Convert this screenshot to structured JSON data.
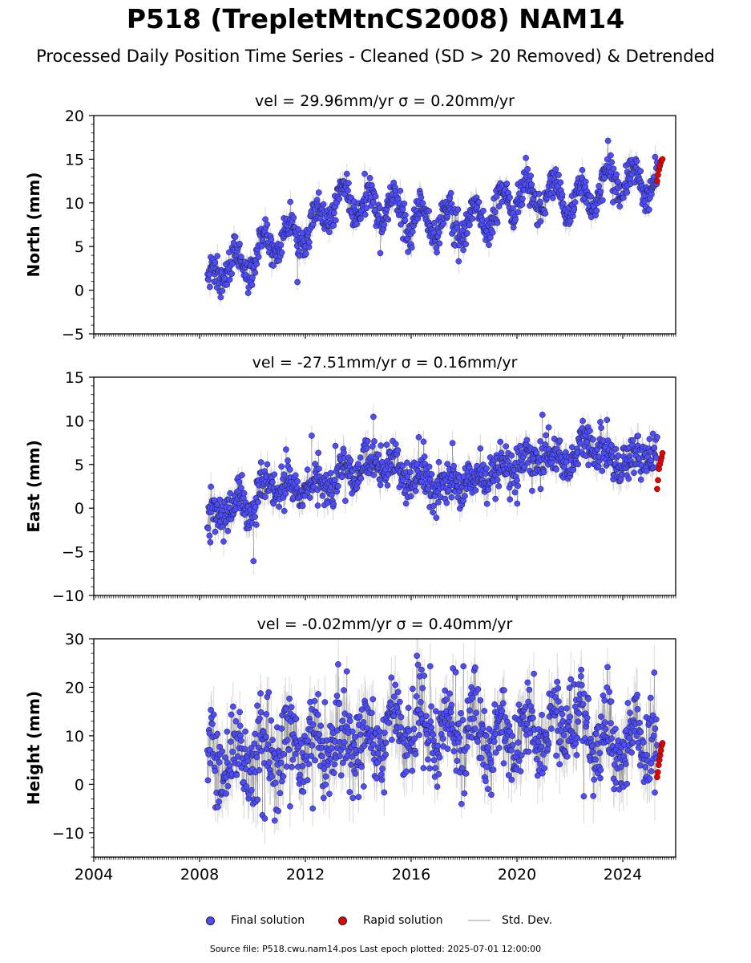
{
  "figure": {
    "title": "P518 (TrepletMtnCS2008) NAM14",
    "subtitle": "Processed Daily Position Time Series - Cleaned (SD > 20 Removed) & Detrended",
    "footer": "Source file: P518.cwu.nam14.pos  Last epoch plotted: 2025-07-01 12:00:00"
  },
  "legend": {
    "final": "Final solution",
    "rapid": "Rapid solution",
    "std": "Std. Dev.",
    "placement": "bottom-center"
  },
  "colors": {
    "final_fill": "#4d4dff",
    "rapid_fill": "#e60000",
    "marker_edge": "#1a1a1a",
    "std_dev": "#c8c8c8",
    "dense_band": "#555555"
  },
  "chart_data": [
    {
      "type": "scatter",
      "ylabel": "North (mm)",
      "panel_title": "vel = 29.96mm/yr   σ = 0.20mm/yr",
      "xlim": [
        2004,
        2026
      ],
      "ylim": [
        -5,
        20
      ],
      "yticks": [
        -5,
        0,
        5,
        10,
        15,
        20
      ],
      "xticks": [
        2004,
        2008,
        2012,
        2016,
        2020,
        2024
      ],
      "show_xticklabels": false,
      "grid": false,
      "series": [
        {
          "name": "Final solution",
          "x_range": [
            2008.3,
            2025.3
          ],
          "trend": [
            [
              2008.3,
              0.5
            ],
            [
              2009.0,
              3.0
            ],
            [
              2009.6,
              2.5
            ],
            [
              2010.3,
              4.5
            ],
            [
              2010.8,
              5.8
            ],
            [
              2012.0,
              6.0
            ],
            [
              2012.8,
              9.5
            ],
            [
              2013.6,
              10.5
            ],
            [
              2014.3,
              9.5
            ],
            [
              2015.2,
              9.5
            ],
            [
              2016.0,
              8.0
            ],
            [
              2017.0,
              7.5
            ],
            [
              2018.0,
              7.8
            ],
            [
              2019.0,
              8.5
            ],
            [
              2019.7,
              10.5
            ],
            [
              2020.5,
              11.0
            ],
            [
              2021.5,
              10.5
            ],
            [
              2022.3,
              10.0
            ],
            [
              2023.0,
              11.0
            ],
            [
              2023.8,
              13.0
            ],
            [
              2024.6,
              12.5
            ],
            [
              2025.3,
              12.0
            ]
          ],
          "seasonal_amplitude": 1.8,
          "scatter_sd": 0.9,
          "std_dev": 1.0
        },
        {
          "name": "Rapid solution",
          "x_range": [
            2025.3,
            2025.5
          ],
          "values": [
            12.5,
            13.2,
            13.8,
            14.2,
            14.6,
            14.9,
            15.0
          ]
        }
      ]
    },
    {
      "type": "scatter",
      "ylabel": "East (mm)",
      "panel_title": "vel = -27.51mm/yr   σ = 0.16mm/yr",
      "xlim": [
        2004,
        2026
      ],
      "ylim": [
        -10,
        15
      ],
      "yticks": [
        -10,
        -5,
        0,
        5,
        10,
        15
      ],
      "xticks": [
        2004,
        2008,
        2012,
        2016,
        2020,
        2024
      ],
      "show_xticklabels": false,
      "grid": false,
      "series": [
        {
          "name": "Final solution",
          "x_range": [
            2008.3,
            2025.3
          ],
          "trend": [
            [
              2008.3,
              -0.5
            ],
            [
              2009.0,
              0.5
            ],
            [
              2010.0,
              0.5
            ],
            [
              2010.5,
              2.5
            ],
            [
              2012.0,
              2.5
            ],
            [
              2013.0,
              3.0
            ],
            [
              2014.0,
              4.5
            ],
            [
              2015.0,
              5.5
            ],
            [
              2016.0,
              3.5
            ],
            [
              2017.0,
              2.5
            ],
            [
              2018.0,
              3.0
            ],
            [
              2019.0,
              4.0
            ],
            [
              2020.0,
              5.0
            ],
            [
              2021.0,
              6.0
            ],
            [
              2022.0,
              5.5
            ],
            [
              2022.8,
              8.0
            ],
            [
              2023.5,
              5.0
            ],
            [
              2024.5,
              5.5
            ],
            [
              2025.3,
              6.0
            ]
          ],
          "seasonal_amplitude": 0.9,
          "scatter_sd": 1.2,
          "std_dev": 1.2
        },
        {
          "name": "Rapid solution",
          "x_range": [
            2025.3,
            2025.5
          ],
          "values": [
            2.2,
            3.2,
            4.5,
            5.0,
            5.4,
            5.8,
            6.3
          ]
        }
      ]
    },
    {
      "type": "scatter",
      "ylabel": "Height (mm)",
      "panel_title": "vel = -0.02mm/yr   σ = 0.40mm/yr",
      "xlim": [
        2004,
        2026
      ],
      "ylim": [
        -15,
        30
      ],
      "yticks": [
        -10,
        0,
        10,
        20,
        30
      ],
      "xticks": [
        2004,
        2008,
        2012,
        2016,
        2020,
        2024
      ],
      "show_xticklabels": true,
      "grid": false,
      "series": [
        {
          "name": "Final solution",
          "x_range": [
            2008.3,
            2025.3
          ],
          "trend": [
            [
              2008.3,
              5.0
            ],
            [
              2010.0,
              5.0
            ],
            [
              2011.0,
              7.0
            ],
            [
              2013.0,
              9.0
            ],
            [
              2015.0,
              10.0
            ],
            [
              2017.0,
              11.0
            ],
            [
              2019.0,
              10.0
            ],
            [
              2021.0,
              11.0
            ],
            [
              2022.5,
              12.0
            ],
            [
              2023.5,
              8.0
            ],
            [
              2025.3,
              8.0
            ]
          ],
          "seasonal_amplitude": 4.0,
          "scatter_sd": 4.5,
          "std_dev": 4.5
        },
        {
          "name": "Rapid solution",
          "x_range": [
            2025.3,
            2025.5
          ],
          "values": [
            1.5,
            2.5,
            4.0,
            5.0,
            6.0,
            7.0,
            8.0,
            8.5
          ]
        }
      ]
    }
  ]
}
